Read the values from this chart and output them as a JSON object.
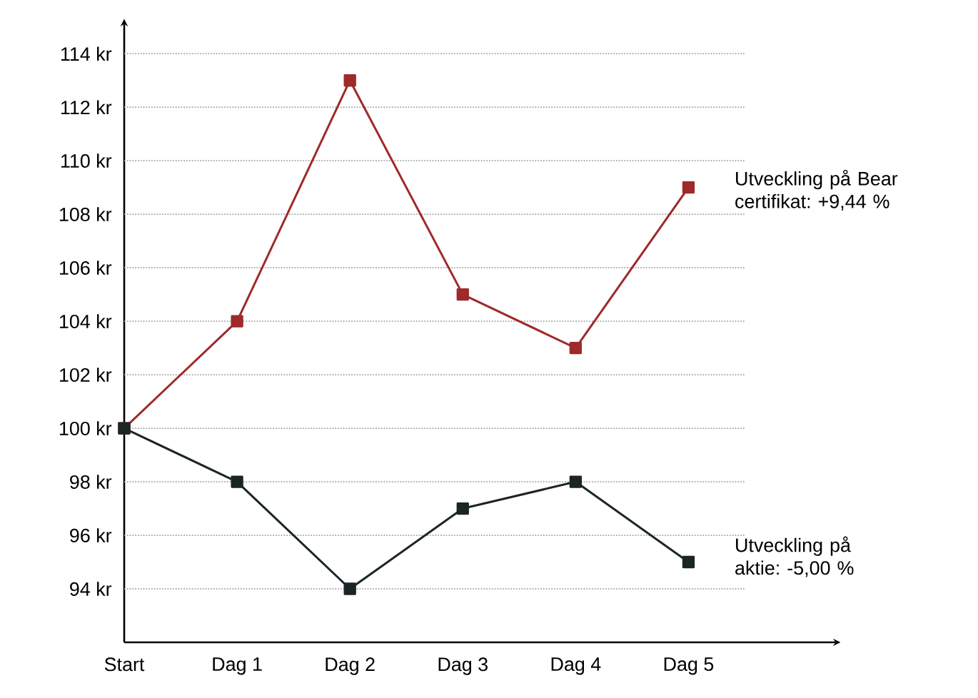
{
  "chart_data": {
    "type": "line",
    "categories": [
      "Start",
      "Dag 1",
      "Dag 2",
      "Dag 3",
      "Dag 4",
      "Dag 5"
    ],
    "series": [
      {
        "color": "#9e2a2b",
        "values": [
          100,
          104,
          113,
          105,
          103,
          109
        ]
      },
      {
        "color": "#1c2526",
        "values": [
          100,
          98,
          94,
          97,
          98,
          95
        ]
      }
    ],
    "ylim": [
      92,
      115.1
    ],
    "yticks": [
      {
        "value": 94,
        "label": "94 kr"
      },
      {
        "value": 96,
        "label": "96 kr"
      },
      {
        "value": 98,
        "label": "98 kr"
      },
      {
        "value": 100,
        "label": "100 kr"
      },
      {
        "value": 102,
        "label": "102 kr"
      },
      {
        "value": 104,
        "label": "104 kr"
      },
      {
        "value": 106,
        "label": "106 kr"
      },
      {
        "value": 108,
        "label": "108 kr"
      },
      {
        "value": 110,
        "label": "110 kr"
      },
      {
        "value": 112,
        "label": "112 kr"
      },
      {
        "value": 114,
        "label": "114 kr"
      }
    ],
    "grid": "y",
    "marker": "square",
    "line_style": "solid",
    "annotations": [
      "Utveckling på Bear certifikat: +9,44 %",
      "Utveckling på aktie: -5,00 %"
    ]
  }
}
